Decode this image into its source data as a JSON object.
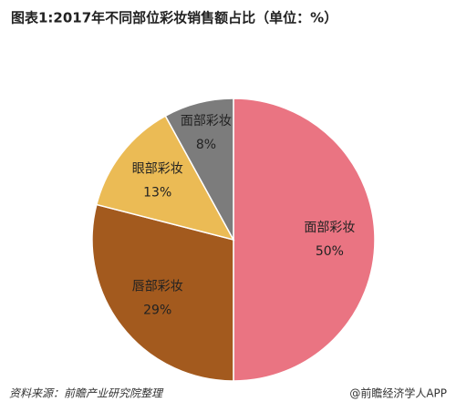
{
  "chart_data": {
    "type": "pie",
    "title": "图表1:2017年不同部位彩妆销售额占比（单位：%）",
    "categories": [
      "面部彩妆",
      "唇部彩妆",
      "眼部彩妆",
      "面部彩妆"
    ],
    "values": [
      50,
      29,
      13,
      8
    ],
    "value_labels": [
      "50%",
      "29%",
      "13%",
      "8%"
    ],
    "colors": [
      "#ea7482",
      "#a35a1e",
      "#ebbb55",
      "#7c7c7c"
    ],
    "source": "资料来源：前瞻产业研究院整理",
    "credit": "@前瞻经济学人APP"
  }
}
